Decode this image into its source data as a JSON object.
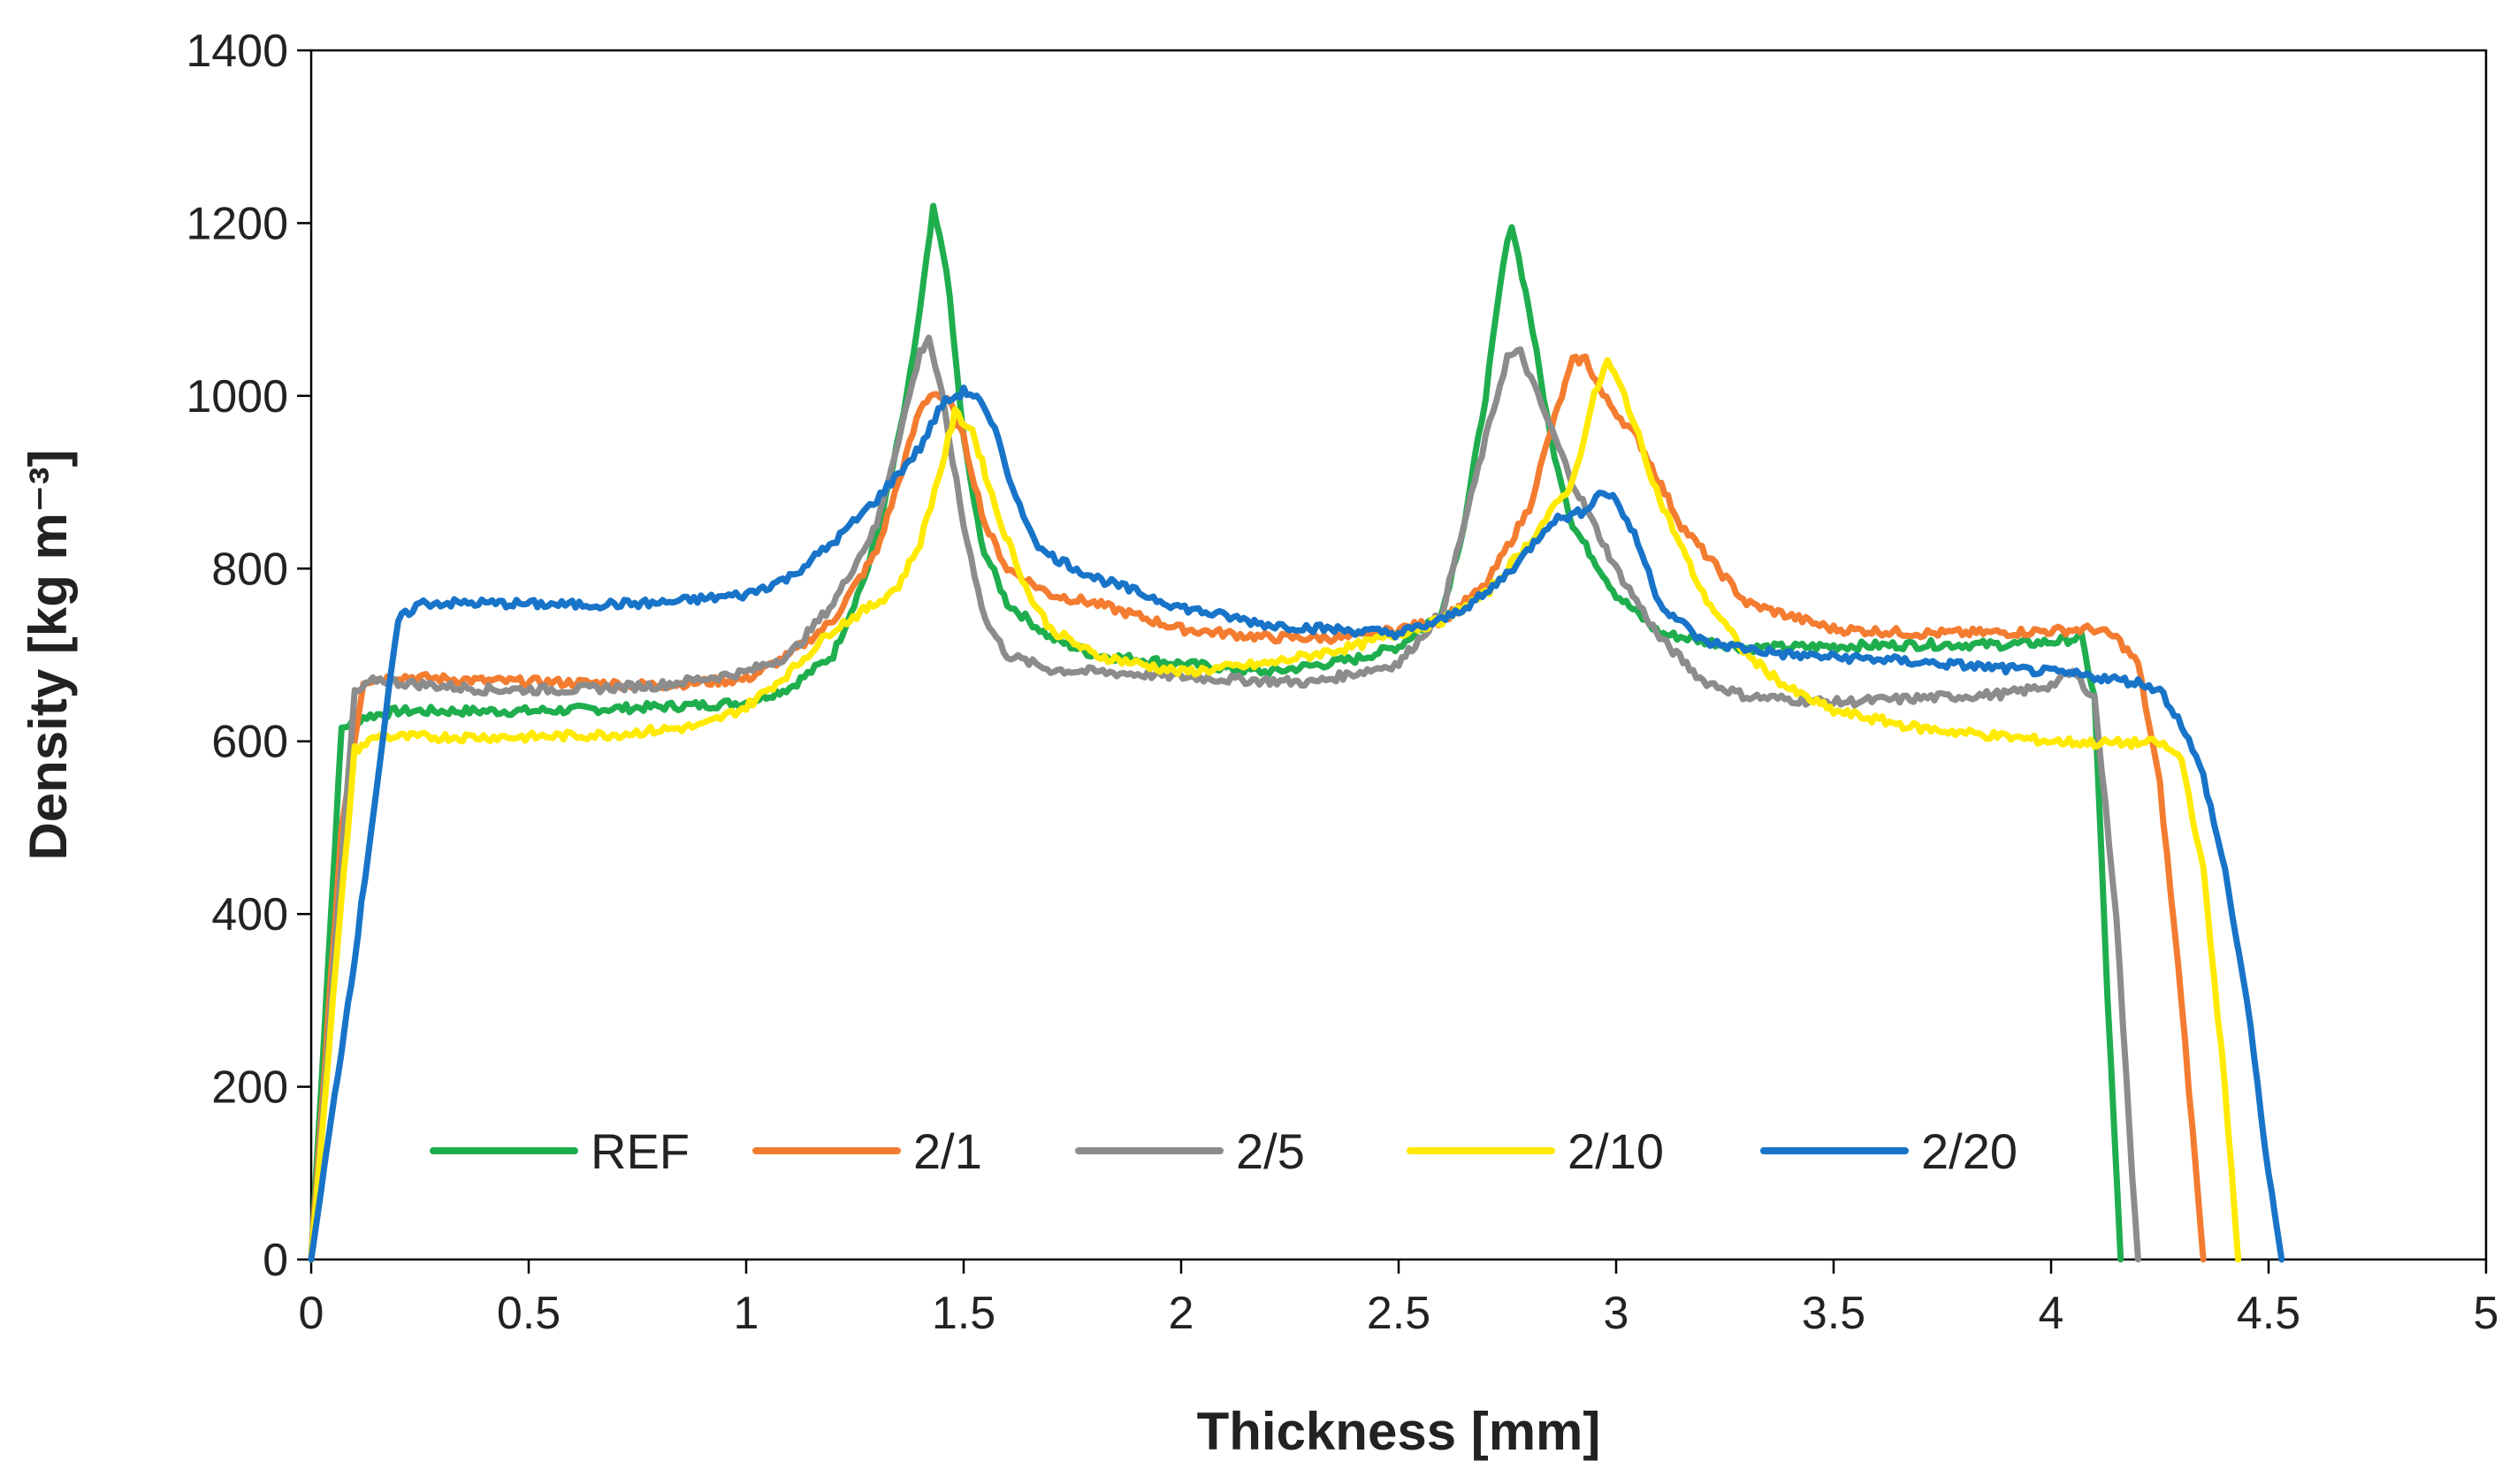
{
  "chart_data": {
    "type": "line",
    "xlabel": "Thickness [mm]",
    "ylabel": "Density [kg m⁻³]",
    "xlim": [
      0,
      5
    ],
    "ylim": [
      0,
      1400
    ],
    "x_ticks": [
      "0",
      "0.5",
      "1",
      "1.5",
      "2",
      "2.5",
      "3",
      "3.5",
      "4",
      "4.5",
      "5"
    ],
    "y_ticks": [
      "0",
      "200",
      "400",
      "600",
      "800",
      "1000",
      "1200",
      "1400"
    ],
    "grid": false,
    "legend_position": "bottom-center",
    "series": [
      {
        "name": "REF",
        "color": "#1fae4e",
        "points": [
          [
            0.0,
            0
          ],
          [
            0.07,
            615
          ],
          [
            0.12,
            628
          ],
          [
            0.2,
            635
          ],
          [
            0.3,
            635
          ],
          [
            0.5,
            635
          ],
          [
            0.7,
            638
          ],
          [
            0.9,
            642
          ],
          [
            1.0,
            645
          ],
          [
            1.1,
            662
          ],
          [
            1.2,
            700
          ],
          [
            1.28,
            800
          ],
          [
            1.33,
            900
          ],
          [
            1.37,
            1000
          ],
          [
            1.4,
            1100
          ],
          [
            1.43,
            1215
          ],
          [
            1.46,
            1150
          ],
          [
            1.5,
            950
          ],
          [
            1.54,
            830
          ],
          [
            1.6,
            760
          ],
          [
            1.7,
            720
          ],
          [
            1.8,
            700
          ],
          [
            2.0,
            690
          ],
          [
            2.2,
            680
          ],
          [
            2.4,
            695
          ],
          [
            2.5,
            710
          ],
          [
            2.6,
            750
          ],
          [
            2.65,
            850
          ],
          [
            2.7,
            1000
          ],
          [
            2.74,
            1150
          ],
          [
            2.76,
            1200
          ],
          [
            2.8,
            1100
          ],
          [
            2.85,
            950
          ],
          [
            2.9,
            850
          ],
          [
            3.0,
            770
          ],
          [
            3.1,
            725
          ],
          [
            3.3,
            708
          ],
          [
            3.5,
            710
          ],
          [
            3.7,
            712
          ],
          [
            3.9,
            712
          ],
          [
            4.0,
            715
          ],
          [
            4.07,
            720
          ],
          [
            4.1,
            650
          ],
          [
            4.13,
            300
          ],
          [
            4.16,
            0
          ]
        ]
      },
      {
        "name": "2/1",
        "color": "#f47c30",
        "points": [
          [
            0.0,
            0
          ],
          [
            0.07,
            500
          ],
          [
            0.12,
            670
          ],
          [
            0.2,
            675
          ],
          [
            0.4,
            670
          ],
          [
            0.6,
            668
          ],
          [
            0.8,
            665
          ],
          [
            1.0,
            672
          ],
          [
            1.1,
            700
          ],
          [
            1.2,
            740
          ],
          [
            1.3,
            820
          ],
          [
            1.35,
            900
          ],
          [
            1.4,
            985
          ],
          [
            1.43,
            1005
          ],
          [
            1.47,
            990
          ],
          [
            1.5,
            950
          ],
          [
            1.55,
            850
          ],
          [
            1.6,
            800
          ],
          [
            1.7,
            770
          ],
          [
            1.8,
            760
          ],
          [
            2.0,
            730
          ],
          [
            2.2,
            720
          ],
          [
            2.4,
            720
          ],
          [
            2.6,
            740
          ],
          [
            2.7,
            780
          ],
          [
            2.8,
            870
          ],
          [
            2.85,
            960
          ],
          [
            2.9,
            1040
          ],
          [
            2.93,
            1043
          ],
          [
            2.97,
            1000
          ],
          [
            3.05,
            950
          ],
          [
            3.15,
            850
          ],
          [
            3.3,
            760
          ],
          [
            3.5,
            730
          ],
          [
            3.7,
            725
          ],
          [
            3.9,
            726
          ],
          [
            4.0,
            728
          ],
          [
            4.1,
            730
          ],
          [
            4.15,
            720
          ],
          [
            4.2,
            690
          ],
          [
            4.25,
            550
          ],
          [
            4.3,
            300
          ],
          [
            4.35,
            0
          ]
        ]
      },
      {
        "name": "2/5",
        "color": "#8c8c8c",
        "points": [
          [
            0.0,
            0
          ],
          [
            0.1,
            655
          ],
          [
            0.15,
            672
          ],
          [
            0.2,
            668
          ],
          [
            0.4,
            660
          ],
          [
            0.6,
            660
          ],
          [
            0.8,
            665
          ],
          [
            1.0,
            680
          ],
          [
            1.1,
            700
          ],
          [
            1.2,
            760
          ],
          [
            1.3,
            850
          ],
          [
            1.35,
            950
          ],
          [
            1.4,
            1050
          ],
          [
            1.42,
            1068
          ],
          [
            1.45,
            1000
          ],
          [
            1.5,
            850
          ],
          [
            1.55,
            740
          ],
          [
            1.6,
            700
          ],
          [
            1.7,
            683
          ],
          [
            1.9,
            678
          ],
          [
            2.1,
            672
          ],
          [
            2.3,
            668
          ],
          [
            2.5,
            690
          ],
          [
            2.6,
            750
          ],
          [
            2.65,
            850
          ],
          [
            2.7,
            950
          ],
          [
            2.75,
            1045
          ],
          [
            2.78,
            1050
          ],
          [
            2.82,
            1000
          ],
          [
            2.9,
            900
          ],
          [
            3.0,
            800
          ],
          [
            3.1,
            720
          ],
          [
            3.2,
            670
          ],
          [
            3.3,
            652
          ],
          [
            3.5,
            645
          ],
          [
            3.7,
            650
          ],
          [
            3.9,
            655
          ],
          [
            4.0,
            665
          ],
          [
            4.05,
            680
          ],
          [
            4.1,
            650
          ],
          [
            4.15,
            400
          ],
          [
            4.18,
            150
          ],
          [
            4.2,
            0
          ]
        ]
      },
      {
        "name": "2/10",
        "color": "#ffea00",
        "points": [
          [
            0.0,
            0
          ],
          [
            0.05,
            300
          ],
          [
            0.1,
            590
          ],
          [
            0.15,
            605
          ],
          [
            0.3,
            605
          ],
          [
            0.5,
            605
          ],
          [
            0.7,
            608
          ],
          [
            0.9,
            618
          ],
          [
            1.0,
            640
          ],
          [
            1.1,
            680
          ],
          [
            1.2,
            730
          ],
          [
            1.3,
            760
          ],
          [
            1.35,
            780
          ],
          [
            1.4,
            830
          ],
          [
            1.45,
            920
          ],
          [
            1.48,
            980
          ],
          [
            1.52,
            960
          ],
          [
            1.58,
            860
          ],
          [
            1.65,
            770
          ],
          [
            1.7,
            730
          ],
          [
            1.8,
            700
          ],
          [
            2.0,
            680
          ],
          [
            2.2,
            690
          ],
          [
            2.4,
            710
          ],
          [
            2.6,
            740
          ],
          [
            2.7,
            770
          ],
          [
            2.8,
            830
          ],
          [
            2.9,
            900
          ],
          [
            2.95,
            1000
          ],
          [
            2.98,
            1040
          ],
          [
            3.02,
            1000
          ],
          [
            3.1,
            880
          ],
          [
            3.2,
            770
          ],
          [
            3.3,
            700
          ],
          [
            3.4,
            660
          ],
          [
            3.5,
            635
          ],
          [
            3.7,
            615
          ],
          [
            3.9,
            605
          ],
          [
            4.0,
            600
          ],
          [
            4.1,
            598
          ],
          [
            4.2,
            598
          ],
          [
            4.25,
            598
          ],
          [
            4.3,
            580
          ],
          [
            4.35,
            450
          ],
          [
            4.4,
            200
          ],
          [
            4.43,
            0
          ]
        ]
      },
      {
        "name": "2/20",
        "color": "#1874c8",
        "points": [
          [
            0.0,
            0
          ],
          [
            0.1,
            350
          ],
          [
            0.2,
            740
          ],
          [
            0.25,
            760
          ],
          [
            0.4,
            760
          ],
          [
            0.6,
            758
          ],
          [
            0.8,
            760
          ],
          [
            1.0,
            770
          ],
          [
            1.1,
            790
          ],
          [
            1.2,
            830
          ],
          [
            1.3,
            880
          ],
          [
            1.4,
            940
          ],
          [
            1.45,
            990
          ],
          [
            1.5,
            1005
          ],
          [
            1.53,
            1000
          ],
          [
            1.58,
            950
          ],
          [
            1.62,
            880
          ],
          [
            1.68,
            820
          ],
          [
            1.8,
            790
          ],
          [
            2.0,
            755
          ],
          [
            2.2,
            735
          ],
          [
            2.4,
            728
          ],
          [
            2.5,
            725
          ],
          [
            2.6,
            740
          ],
          [
            2.7,
            770
          ],
          [
            2.78,
            810
          ],
          [
            2.85,
            855
          ],
          [
            2.92,
            865
          ],
          [
            2.97,
            890
          ],
          [
            3.0,
            880
          ],
          [
            3.05,
            830
          ],
          [
            3.1,
            760
          ],
          [
            3.2,
            715
          ],
          [
            3.4,
            700
          ],
          [
            3.6,
            695
          ],
          [
            3.8,
            688
          ],
          [
            4.0,
            680
          ],
          [
            4.1,
            675
          ],
          [
            4.2,
            668
          ],
          [
            4.25,
            660
          ],
          [
            4.3,
            620
          ],
          [
            4.35,
            560
          ],
          [
            4.4,
            450
          ],
          [
            4.45,
            300
          ],
          [
            4.5,
            100
          ],
          [
            4.53,
            0
          ]
        ]
      }
    ]
  }
}
